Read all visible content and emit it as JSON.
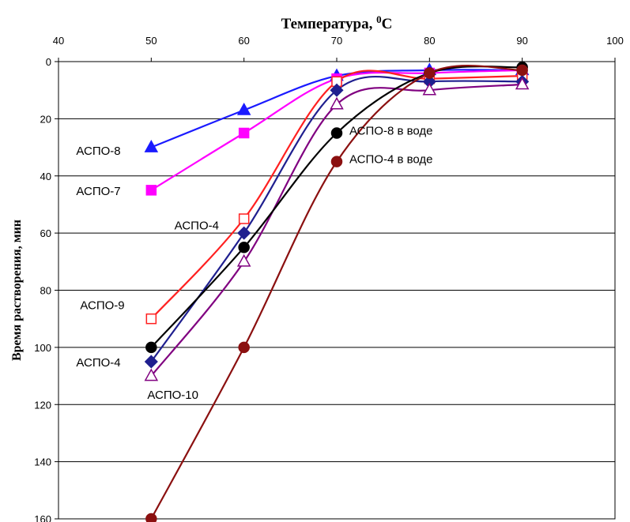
{
  "chart_data": {
    "type": "line",
    "xlabel": "Температура, ",
    "xlabel_sup": "0",
    "xlabel_unit": "C",
    "ylabel": "Время растворения, мин",
    "xlim": [
      40,
      100
    ],
    "ylim": [
      0,
      160
    ],
    "y_inverted": true,
    "x_axis_position": "top",
    "x_ticks": [
      40,
      50,
      60,
      70,
      80,
      90,
      100
    ],
    "y_ticks": [
      0,
      20,
      40,
      60,
      80,
      100,
      120,
      140,
      160
    ],
    "grid": "horizontal",
    "x": [
      50,
      60,
      70,
      80,
      90
    ],
    "series": [
      {
        "label": "АСПО-8",
        "color": "#1a1aff",
        "marker": "triangle",
        "filled": true,
        "values": [
          30,
          17,
          5,
          3,
          3
        ],
        "label_at": [
          50,
          31
        ]
      },
      {
        "label": "АСПО-7",
        "color": "#ff00ff",
        "marker": "square",
        "filled": true,
        "values": [
          45,
          25,
          6,
          4,
          3
        ],
        "label_at": [
          50,
          45
        ]
      },
      {
        "label": "АСПО-9",
        "color": "#ff2020",
        "marker": "square",
        "filled": false,
        "values": [
          90,
          55,
          7,
          6,
          5
        ],
        "label_at": [
          50,
          88
        ]
      },
      {
        "label": "АСПО-4",
        "color": "#1f1f8f",
        "marker": "diamond",
        "filled": true,
        "values": [
          105,
          60,
          10,
          7,
          7
        ],
        "label_at": [
          50,
          105
        ]
      },
      {
        "label": "АСПО-10",
        "color": "#800080",
        "marker": "triangle",
        "filled": false,
        "values": [
          110,
          70,
          15,
          10,
          8
        ],
        "label_at": [
          50,
          113
        ]
      },
      {
        "label": "АСПО-8 в воде",
        "color": "#000000",
        "marker": "circle",
        "filled": true,
        "values": [
          100,
          65,
          25,
          4,
          2
        ],
        "label_at": [
          70,
          25
        ]
      },
      {
        "label": "АСПО-4 в воде",
        "color": "#8b1010",
        "marker": "circle",
        "filled": true,
        "values": [
          160,
          100,
          35,
          4,
          3
        ],
        "label_at": [
          70,
          35
        ]
      }
    ],
    "extra_labels": [
      {
        "label": "АСПО-4",
        "at": [
          60,
          57
        ]
      }
    ]
  }
}
